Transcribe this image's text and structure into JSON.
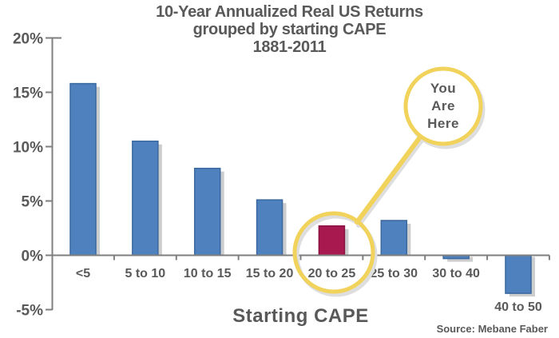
{
  "chart_data": {
    "type": "bar",
    "title_lines": [
      "10-Year Annualized Real US Returns",
      "grouped by starting CAPE",
      "1881-2011"
    ],
    "xlabel": "Starting CAPE",
    "ylabel": "",
    "categories": [
      "<5",
      "5 to 10",
      "10 to 15",
      "15 to 20",
      "20 to 25",
      "25 to 30",
      "30 to 40",
      "40 to 50"
    ],
    "values": [
      15.8,
      10.5,
      8.0,
      5.1,
      2.7,
      3.2,
      -0.3,
      -3.5
    ],
    "highlight_index": 4,
    "ylim": [
      -5,
      20
    ],
    "y_ticks": [
      20,
      15,
      10,
      5,
      0,
      -5
    ],
    "y_tick_labels": [
      "20%",
      "15%",
      "10%",
      "5%",
      "0%",
      "-5%"
    ],
    "grid": false,
    "legend": false,
    "source": "Source: Mebane Faber",
    "annotation": {
      "lines": [
        "You",
        "Are",
        "Here"
      ],
      "target_category": "20 to 25"
    },
    "colors": {
      "bar": "#4E81BD",
      "bar_border": "#3A689F",
      "highlight": "#A81A4F",
      "highlight_border": "#8A1240",
      "shadow": "#CBCDCE",
      "axis": "#7F7F7F",
      "text": "#595959",
      "accent": "#F1D25B",
      "accent_shadow": "#DEDEDE"
    }
  }
}
